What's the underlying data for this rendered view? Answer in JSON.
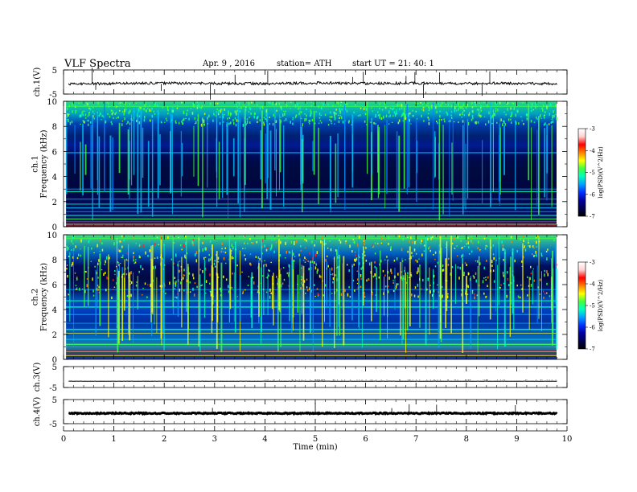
{
  "header": {
    "title": "VLF  Spectra",
    "date": "Apr. 9  , 2016",
    "station": "station= ATH",
    "start_ut": "start  UT  =   21: 40: 1"
  },
  "colors": {
    "spectrogram_scale": [
      "#000000",
      "#000050",
      "#0000a0",
      "#0030ff",
      "#00a0ff",
      "#00ffc0",
      "#40ff40",
      "#ffff00",
      "#ff8000",
      "#ff0000",
      "#ffd0d0",
      "#ffffff"
    ]
  },
  "chart_data": [
    {
      "type": "line",
      "name": "ch1-waveform",
      "ylabel": "ch.1(V)",
      "xlim": [
        0,
        10
      ],
      "ylim": [
        -5,
        5
      ],
      "yticks": [
        "5",
        "-5"
      ],
      "x": [
        0.1,
        1,
        2,
        3,
        4,
        5,
        6,
        7,
        8,
        9,
        9.8
      ],
      "y": [
        -0.8,
        -0.6,
        -0.5,
        -0.6,
        -0.7,
        -0.4,
        -0.6,
        -0.5,
        -0.6,
        -0.5,
        -0.8
      ]
    },
    {
      "type": "heatmap",
      "name": "ch1-spectrogram",
      "ylabel": "ch.1\nFrequency  (kHz)",
      "xlim": [
        0,
        10
      ],
      "ylim": [
        0,
        10
      ],
      "yticks": [
        "0",
        "2",
        "4",
        "6",
        "8",
        "10"
      ],
      "data_extent_min": [
        0.05,
        9.8
      ],
      "colorbar": {
        "label": "log(PSD)(V^2/Hz)",
        "range": [
          -7,
          -3
        ],
        "ticks": [
          "-3",
          "-4",
          "-5",
          "-6",
          "-7"
        ]
      }
    },
    {
      "type": "heatmap",
      "name": "ch2-spectrogram",
      "ylabel": "ch.2\nFrequency  (kHz)",
      "xlim": [
        0,
        10
      ],
      "ylim": [
        0,
        10
      ],
      "yticks": [
        "0",
        "2",
        "4",
        "6",
        "8",
        "10"
      ],
      "data_extent_min": [
        0.05,
        9.8
      ],
      "colorbar": {
        "label": "log(PSD)(V^2/Hz)",
        "range": [
          -7,
          -3
        ],
        "ticks": [
          "-3",
          "-4",
          "-5",
          "-6",
          "-7"
        ]
      }
    },
    {
      "type": "line",
      "name": "ch3-waveform",
      "ylabel": "ch.3(V)",
      "xlim": [
        0,
        10
      ],
      "ylim": [
        -5,
        5
      ],
      "yticks": [
        "5",
        "-5"
      ],
      "x": [
        0.1,
        9.8
      ],
      "y": [
        -2,
        -2
      ]
    },
    {
      "type": "line",
      "name": "ch4-waveform",
      "ylabel": "ch.4(V)",
      "xlim": [
        0,
        10
      ],
      "ylim": [
        -5,
        5
      ],
      "yticks": [
        "5",
        "-5"
      ],
      "x": [
        0.1,
        9.8
      ],
      "y": [
        -0.7,
        -0.7
      ]
    }
  ],
  "xaxis": {
    "label": "Time  (min)",
    "ticks": [
      "0",
      "1",
      "2",
      "3",
      "4",
      "5",
      "6",
      "7",
      "8",
      "9",
      "10"
    ]
  }
}
